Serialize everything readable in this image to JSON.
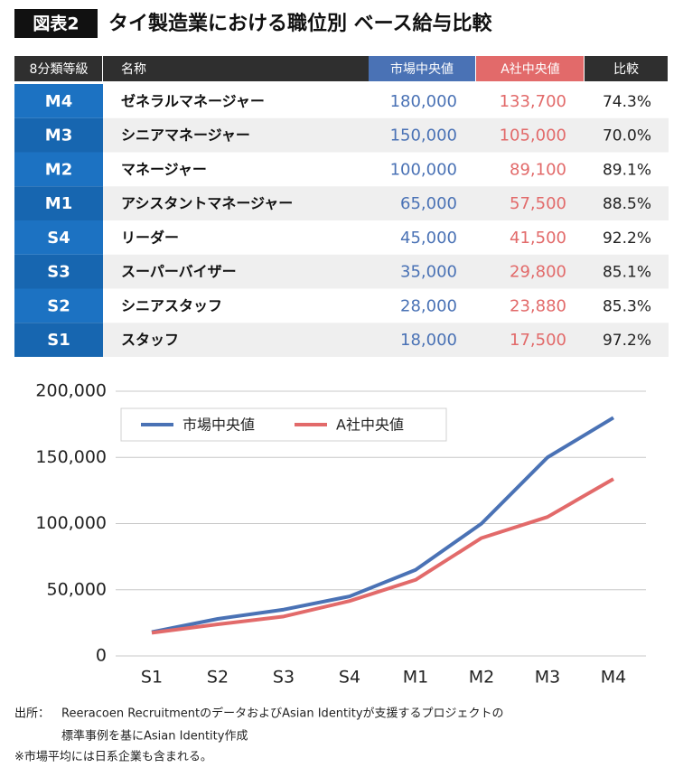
{
  "header": {
    "badge": "図表2",
    "title": "タイ製造業における職位別 ベース給与比較"
  },
  "table": {
    "columns": [
      "8分類等級",
      "名称",
      "市場中央値",
      "A社中央値",
      "比較"
    ],
    "rows": [
      [
        "M4",
        "ゼネラルマネージャー",
        "180,000",
        "133,700",
        "74.3%"
      ],
      [
        "M3",
        "シニアマネージャー",
        "150,000",
        "105,000",
        "70.0%"
      ],
      [
        "M2",
        "マネージャー",
        "100,000",
        "89,100",
        "89.1%"
      ],
      [
        "M1",
        "アシスタントマネージャー",
        "65,000",
        "57,500",
        "88.5%"
      ],
      [
        "S4",
        "リーダー",
        "45,000",
        "41,500",
        "92.2%"
      ],
      [
        "S3",
        "スーパーバイザー",
        "35,000",
        "29,800",
        "85.1%"
      ],
      [
        "S2",
        "シニアスタッフ",
        "28,000",
        "23,880",
        "85.3%"
      ],
      [
        "S1",
        "スタッフ",
        "18,000",
        "17,500",
        "97.2%"
      ]
    ]
  },
  "chart_data": {
    "type": "line",
    "categories": [
      "S1",
      "S2",
      "S3",
      "S4",
      "M1",
      "M2",
      "M3",
      "M4"
    ],
    "series": [
      {
        "name": "市場中央値",
        "color": "#4a72b5",
        "values": [
          18000,
          28000,
          35000,
          45000,
          65000,
          100000,
          150000,
          180000
        ]
      },
      {
        "name": "A社中央値",
        "color": "#e26a6a",
        "values": [
          17500,
          23880,
          29800,
          41500,
          57500,
          89100,
          105000,
          133700
        ]
      }
    ],
    "ylim": [
      0,
      200000
    ],
    "yticks": [
      0,
      {
        "value": 50000,
        "label": "50,000"
      },
      {
        "value": 100000,
        "label": "100,000"
      },
      {
        "value": 150000,
        "label": "150,000"
      },
      {
        "value": 200000,
        "label": "200,000"
      }
    ],
    "grid": true,
    "legend": "upper left"
  },
  "footer": {
    "source_label": "出所：",
    "source_lines": [
      "Reeracoen RecruitmentのデータおよびAsian Identityが支援するプロジェクトの",
      "標準事例を基にAsian Identity作成"
    ],
    "note": "※市場平均には日系企業も含まれる。"
  }
}
